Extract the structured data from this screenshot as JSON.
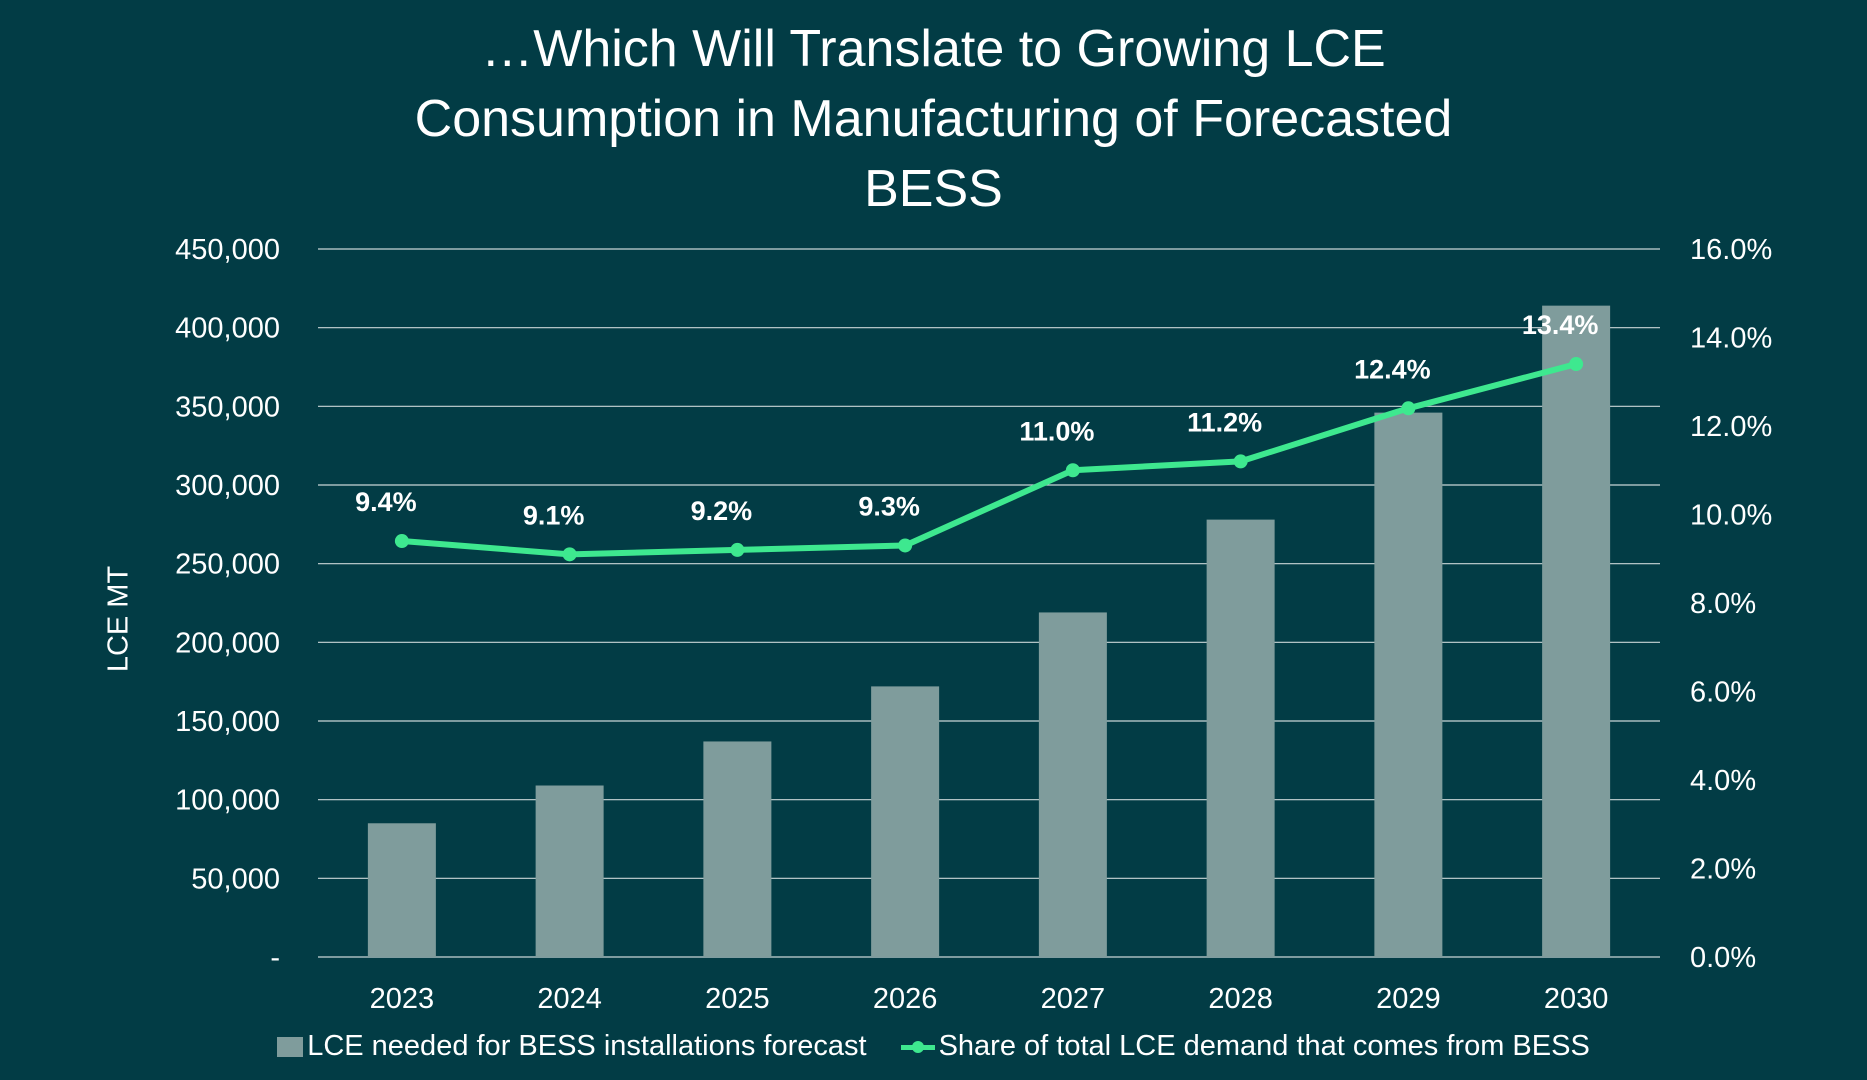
{
  "chart_data": {
    "type": "bar+line",
    "title_lines": [
      "…Which Will Translate to Growing LCE",
      "Consumption in Manufacturing of Forecasted",
      "BESS"
    ],
    "ylabel": "LCE MT",
    "categories": [
      "2023",
      "2024",
      "2025",
      "2026",
      "2027",
      "2028",
      "2029",
      "2030"
    ],
    "y_left": {
      "range": [
        0,
        450000
      ],
      "ticks": [
        "-",
        "50,000",
        "100,000",
        "150,000",
        "200,000",
        "250,000",
        "300,000",
        "350,000",
        "400,000",
        "450,000"
      ]
    },
    "y_right": {
      "range": [
        0,
        16
      ],
      "ticks": [
        "0.0%",
        "2.0%",
        "4.0%",
        "6.0%",
        "8.0%",
        "10.0%",
        "12.0%",
        "14.0%",
        "16.0%"
      ]
    },
    "grid": true,
    "legend_position": "bottom",
    "series": [
      {
        "name": "LCE needed for BESS installations forecast",
        "type": "bar",
        "axis": "left",
        "color": "#7f9c9c",
        "values": [
          85000,
          109000,
          137000,
          172000,
          219000,
          278000,
          346000,
          414000
        ]
      },
      {
        "name": "Share of total LCE demand that comes from BESS",
        "type": "line",
        "axis": "right",
        "color": "#3ee88f",
        "values": [
          9.4,
          9.1,
          9.2,
          9.3,
          11.0,
          11.2,
          12.4,
          13.4
        ],
        "labels": [
          "9.4%",
          "9.1%",
          "9.2%",
          "9.3%",
          "11.0%",
          "11.2%",
          "12.4%",
          "13.4%"
        ]
      }
    ]
  },
  "colors": {
    "background": "#023c45",
    "gridline": "#c9d6d6",
    "text": "#ffffff"
  }
}
